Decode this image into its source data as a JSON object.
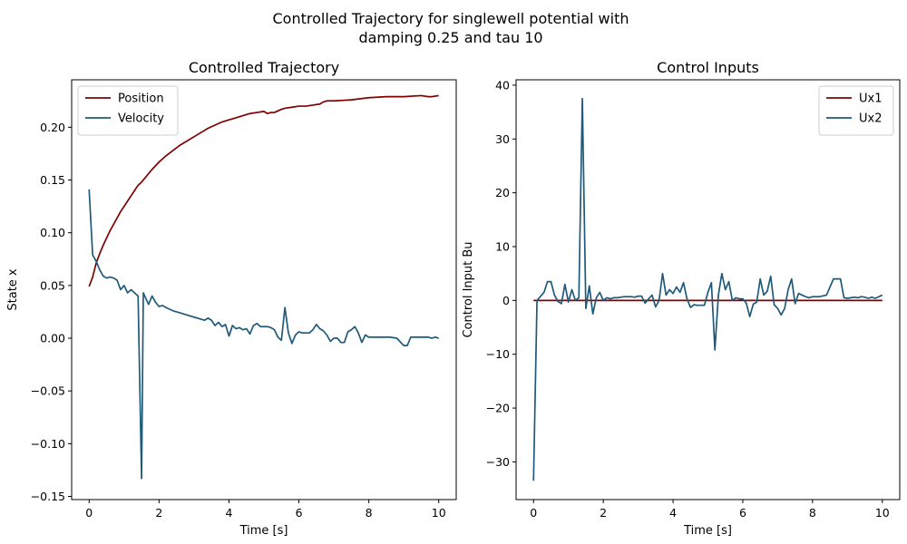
{
  "figure": {
    "suptitle_line1": "Controlled Trajectory for singlewell potential with",
    "suptitle_line2": "damping 0.25 and tau 10"
  },
  "chart_data": [
    {
      "type": "line",
      "title": "Controlled Trajectory",
      "xlabel": "Time [s]",
      "ylabel": "State x",
      "xlim": [
        -0.5,
        10.5
      ],
      "ylim": [
        -0.153,
        0.245
      ],
      "xticks": [
        0,
        2,
        4,
        6,
        8,
        10
      ],
      "yticks": [
        -0.15,
        -0.1,
        -0.05,
        0.0,
        0.05,
        0.1,
        0.15,
        0.2
      ],
      "ytick_labels": [
        "−0.15",
        "−0.10",
        "−0.05",
        "0.00",
        "0.05",
        "0.10",
        "0.15",
        "0.20"
      ],
      "legend": "top-left",
      "series": [
        {
          "name": "Position",
          "color": "#800000",
          "x": [
            0,
            0.1,
            0.2,
            0.3,
            0.4,
            0.5,
            0.6,
            0.7,
            0.8,
            0.9,
            1.0,
            1.1,
            1.2,
            1.3,
            1.4,
            1.5,
            1.6,
            1.8,
            2.0,
            2.2,
            2.4,
            2.6,
            2.8,
            3.0,
            3.2,
            3.4,
            3.6,
            3.8,
            4.0,
            4.2,
            4.4,
            4.6,
            4.8,
            5.0,
            5.1,
            5.2,
            5.3,
            5.5,
            5.6,
            5.8,
            6.0,
            6.2,
            6.4,
            6.6,
            6.7,
            6.8,
            7.0,
            7.5,
            8.0,
            8.5,
            9.0,
            9.5,
            9.7,
            9.8,
            10.0
          ],
          "y": [
            0.049,
            0.058,
            0.071,
            0.08,
            0.088,
            0.095,
            0.102,
            0.108,
            0.114,
            0.12,
            0.125,
            0.13,
            0.135,
            0.14,
            0.145,
            0.148,
            0.152,
            0.16,
            0.167,
            0.173,
            0.178,
            0.183,
            0.187,
            0.191,
            0.195,
            0.199,
            0.202,
            0.205,
            0.207,
            0.209,
            0.211,
            0.213,
            0.214,
            0.215,
            0.213,
            0.214,
            0.214,
            0.217,
            0.218,
            0.219,
            0.22,
            0.22,
            0.221,
            0.222,
            0.224,
            0.225,
            0.225,
            0.226,
            0.228,
            0.229,
            0.229,
            0.23,
            0.229,
            0.229,
            0.23
          ]
        },
        {
          "name": "Velocity",
          "color": "#1f5a7a",
          "x": [
            0,
            0.1,
            0.2,
            0.3,
            0.4,
            0.5,
            0.6,
            0.7,
            0.8,
            0.9,
            1.0,
            1.1,
            1.2,
            1.3,
            1.4,
            1.5,
            1.55,
            1.7,
            1.8,
            1.9,
            2.0,
            2.1,
            2.2,
            2.4,
            2.6,
            2.8,
            3.0,
            3.2,
            3.3,
            3.4,
            3.5,
            3.6,
            3.7,
            3.8,
            3.9,
            4.0,
            4.1,
            4.2,
            4.3,
            4.4,
            4.5,
            4.6,
            4.7,
            4.8,
            4.9,
            5.0,
            5.1,
            5.2,
            5.3,
            5.4,
            5.5,
            5.6,
            5.7,
            5.8,
            5.9,
            6.0,
            6.1,
            6.2,
            6.3,
            6.4,
            6.5,
            6.6,
            6.7,
            6.8,
            6.9,
            7.0,
            7.1,
            7.2,
            7.3,
            7.4,
            7.5,
            7.6,
            7.7,
            7.8,
            7.9,
            8.0,
            8.2,
            8.4,
            8.6,
            8.8,
            9.0,
            9.1,
            9.2,
            9.3,
            9.4,
            9.5,
            9.6,
            9.7,
            9.8,
            9.9,
            10.0
          ],
          "y": [
            0.141,
            0.079,
            0.073,
            0.065,
            0.059,
            0.057,
            0.058,
            0.057,
            0.055,
            0.046,
            0.05,
            0.043,
            0.046,
            0.043,
            0.04,
            -0.133,
            0.043,
            0.032,
            0.04,
            0.034,
            0.03,
            0.031,
            0.029,
            0.026,
            0.024,
            0.022,
            0.02,
            0.018,
            0.017,
            0.019,
            0.017,
            0.012,
            0.015,
            0.011,
            0.013,
            0.002,
            0.012,
            0.009,
            0.01,
            0.008,
            0.009,
            0.004,
            0.012,
            0.014,
            0.011,
            0.011,
            0.011,
            0.01,
            0.008,
            0.001,
            -0.002,
            0.029,
            0.005,
            -0.005,
            0.003,
            0.006,
            0.005,
            0.005,
            0.005,
            0.008,
            0.013,
            0.009,
            0.007,
            0.003,
            -0.003,
            0.0,
            0.0,
            -0.004,
            -0.004,
            0.006,
            0.008,
            0.011,
            0.005,
            -0.004,
            0.003,
            0.001,
            0.001,
            0.001,
            0.001,
            0.0,
            -0.007,
            -0.007,
            0.001,
            0.001,
            0.001,
            0.001,
            0.001,
            0.001,
            0.0,
            0.001,
            0.0
          ]
        }
      ]
    },
    {
      "type": "line",
      "title": "Control Inputs",
      "xlabel": "Time [s]",
      "ylabel": "Control Input Bu",
      "xlim": [
        -0.5,
        10.5
      ],
      "ylim": [
        -37,
        41
      ],
      "xticks": [
        0,
        2,
        4,
        6,
        8,
        10
      ],
      "yticks": [
        -30,
        -20,
        -10,
        0,
        10,
        20,
        30,
        40
      ],
      "ytick_labels": [
        "−30",
        "−20",
        "−10",
        "0",
        "10",
        "20",
        "30",
        "40"
      ],
      "legend": "top-right",
      "series": [
        {
          "name": "Ux1",
          "color": "#800000",
          "x": [
            0,
            10
          ],
          "y": [
            0,
            0
          ]
        },
        {
          "name": "Ux2",
          "color": "#1f5a7a",
          "x": [
            0,
            0.1,
            0.3,
            0.4,
            0.5,
            0.6,
            0.7,
            0.8,
            0.9,
            1.0,
            1.1,
            1.2,
            1.3,
            1.4,
            1.5,
            1.6,
            1.7,
            1.8,
            1.9,
            2.0,
            2.1,
            2.2,
            2.3,
            2.4,
            2.5,
            2.6,
            2.7,
            2.8,
            2.9,
            3.0,
            3.1,
            3.2,
            3.3,
            3.4,
            3.5,
            3.6,
            3.7,
            3.8,
            3.9,
            4.0,
            4.1,
            4.2,
            4.3,
            4.4,
            4.5,
            4.6,
            4.7,
            4.8,
            4.9,
            5.0,
            5.1,
            5.2,
            5.3,
            5.4,
            5.5,
            5.6,
            5.7,
            5.8,
            5.9,
            6.0,
            6.1,
            6.2,
            6.3,
            6.4,
            6.5,
            6.6,
            6.7,
            6.8,
            6.9,
            7.0,
            7.1,
            7.2,
            7.3,
            7.4,
            7.5,
            7.6,
            7.7,
            7.8,
            7.9,
            8.0,
            8.2,
            8.4,
            8.6,
            8.8,
            8.9,
            9.0,
            9.1,
            9.2,
            9.3,
            9.4,
            9.5,
            9.6,
            9.7,
            9.8,
            9.9,
            10.0
          ],
          "y": [
            -33.5,
            0.0,
            1.5,
            3.5,
            3.5,
            1.0,
            -0.2,
            -0.6,
            3.0,
            -0.3,
            2.0,
            0.0,
            0.5,
            37.5,
            -1.5,
            2.7,
            -2.5,
            0.5,
            1.5,
            0.0,
            0.5,
            0.3,
            0.5,
            0.5,
            0.6,
            0.7,
            0.7,
            0.7,
            0.6,
            0.8,
            0.8,
            -0.5,
            0.3,
            1.0,
            -1.2,
            0.0,
            5.0,
            1.0,
            2.0,
            1.3,
            2.5,
            1.5,
            3.3,
            0.3,
            -1.3,
            -0.8,
            -0.9,
            -0.9,
            -0.9,
            1.5,
            3.3,
            -9.2,
            1.0,
            5.0,
            2.0,
            3.5,
            0.0,
            0.5,
            0.3,
            0.3,
            -0.5,
            -3.0,
            -0.7,
            -0.3,
            4.0,
            1.0,
            1.7,
            4.5,
            -0.8,
            -1.5,
            -2.7,
            -1.5,
            2.0,
            4.0,
            -0.6,
            1.3,
            1.0,
            0.7,
            0.5,
            0.7,
            0.7,
            1.0,
            4.0,
            4.0,
            0.5,
            0.4,
            0.5,
            0.6,
            0.5,
            0.7,
            0.6,
            0.4,
            0.6,
            0.4,
            0.7,
            1.0
          ]
        }
      ]
    }
  ]
}
